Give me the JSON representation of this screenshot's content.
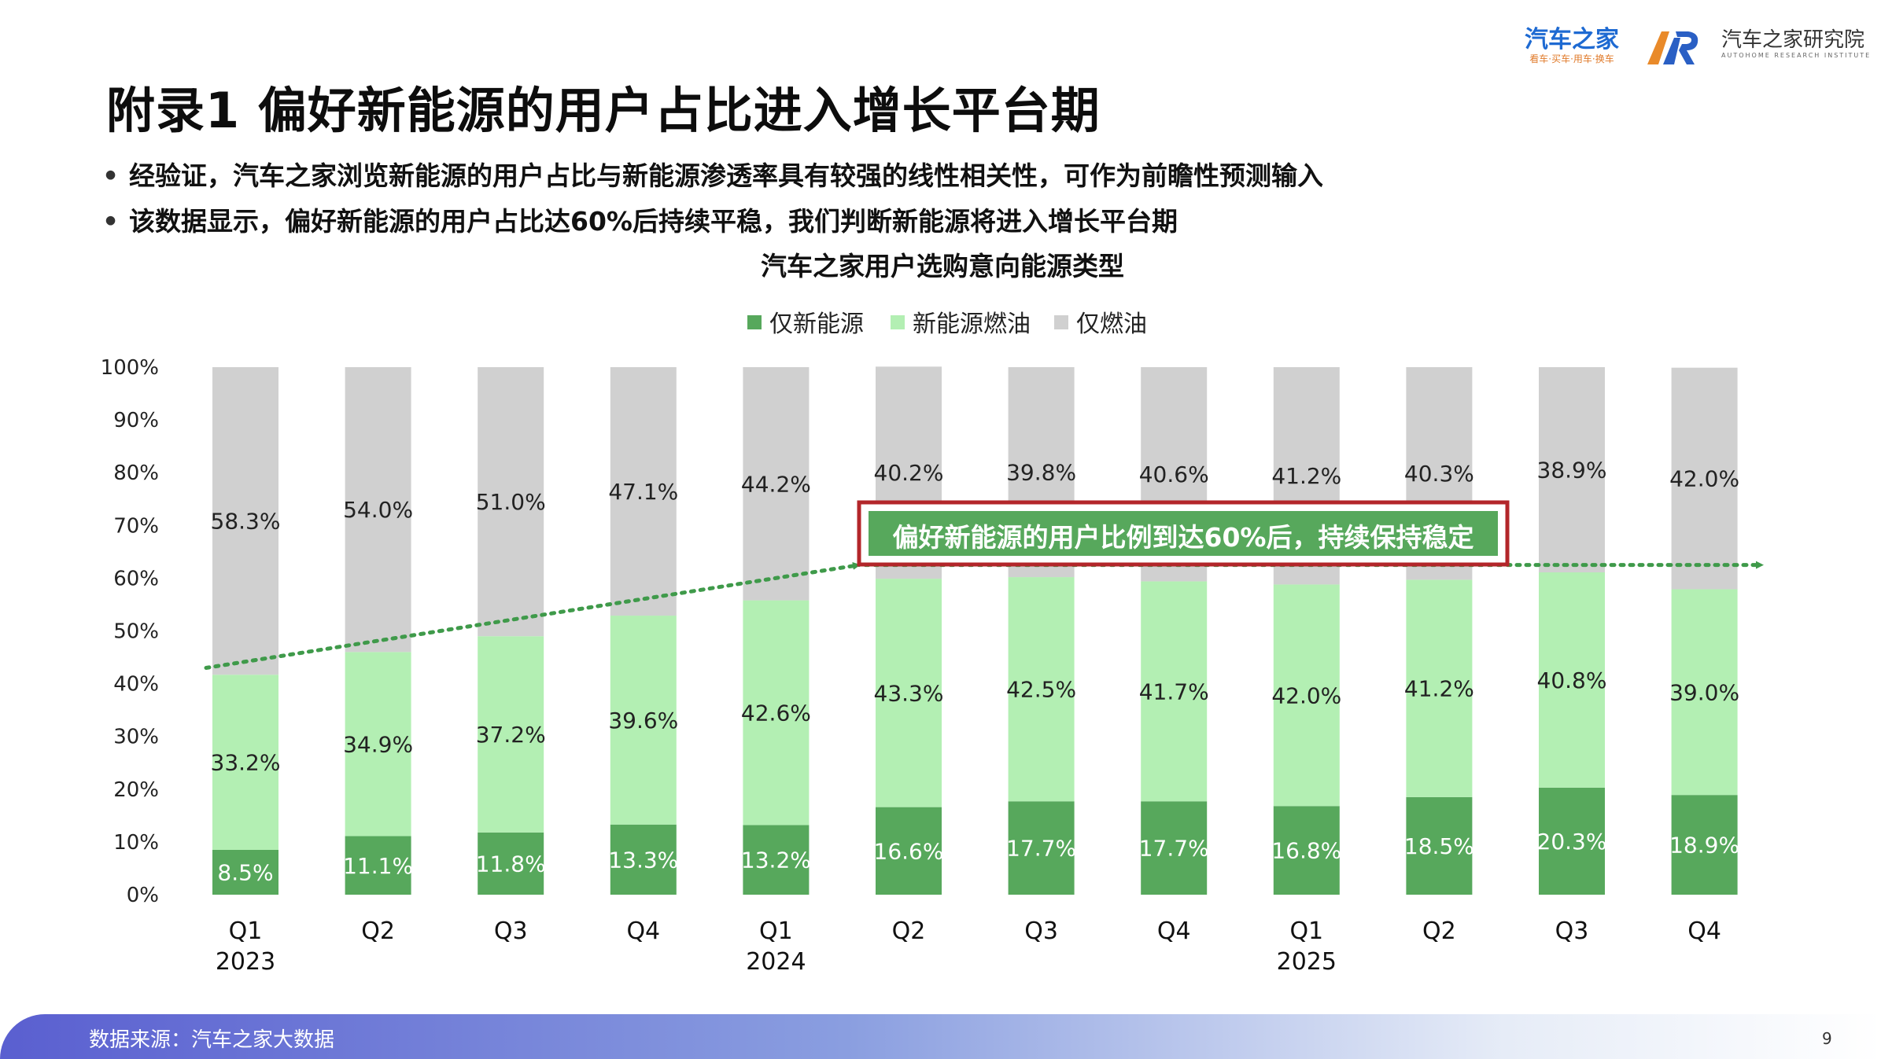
{
  "header": {
    "title": "附录1 偏好新能源的用户占比进入增长平台期",
    "brand_name": "汽车之家",
    "brand_tagline": "看车·买车·用车·换车",
    "institute_name": "汽车之家研究院",
    "institute_en": "AUTOHOME RESEARCH INSTITUTE"
  },
  "bullets": [
    "经验证，汽车之家浏览新能源的用户占比与新能源渗透率具有较强的线性相关性，可作为前瞻性预测输入",
    "该数据显示，偏好新能源的用户占比达60%后持续平稳，我们判断新能源将进入增长平台期"
  ],
  "footer": {
    "source": "数据来源：汽车之家大数据",
    "page": "9"
  },
  "chart_data": {
    "type": "bar",
    "stacked": true,
    "title": "汽车之家用户选购意向能源类型",
    "categories": [
      "Q1",
      "Q2",
      "Q3",
      "Q4",
      "Q1",
      "Q2",
      "Q3",
      "Q4",
      "Q1",
      "Q2",
      "Q3",
      "Q4"
    ],
    "year_labels": [
      "2023",
      "",
      "",
      "",
      "2024",
      "",
      "",
      "",
      "2025",
      "",
      "",
      ""
    ],
    "yticks": [
      "0%",
      "10%",
      "20%",
      "30%",
      "40%",
      "50%",
      "60%",
      "70%",
      "80%",
      "90%",
      "100%"
    ],
    "ylim": [
      0,
      100
    ],
    "legend_position": "top-center",
    "series": [
      {
        "name": "仅新能源",
        "color": "#57a85c",
        "values": [
          8.5,
          11.1,
          11.8,
          13.3,
          13.2,
          16.6,
          17.7,
          17.7,
          16.8,
          18.5,
          20.3,
          18.9
        ],
        "labels": [
          "8.5%",
          "11.1%",
          "11.8%",
          "13.3%",
          "13.2%",
          "16.6%",
          "17.7%",
          "17.7%",
          "16.8%",
          "18.5%",
          "20.3%",
          "18.9%"
        ]
      },
      {
        "name": "新能源燃油",
        "color": "#b3efb3",
        "values": [
          33.2,
          34.9,
          37.2,
          39.6,
          42.6,
          43.3,
          42.5,
          41.7,
          42.0,
          41.2,
          40.8,
          39.0
        ],
        "labels": [
          "33.2%",
          "34.9%",
          "37.2%",
          "39.6%",
          "42.6%",
          "43.3%",
          "42.5%",
          "41.7%",
          "42.0%",
          "41.2%",
          "40.8%",
          "39.0%"
        ]
      },
      {
        "name": "仅燃油",
        "color": "#d0d0d0",
        "values": [
          58.3,
          54.0,
          51.0,
          47.1,
          44.2,
          40.2,
          39.8,
          40.6,
          41.2,
          40.3,
          38.9,
          42.0
        ],
        "labels": [
          "58.3%",
          "54.0%",
          "51.0%",
          "47.1%",
          "44.2%",
          "40.2%",
          "39.8%",
          "40.6%",
          "41.2%",
          "40.3%",
          "38.9%",
          "42.0%"
        ]
      }
    ],
    "trend": {
      "start_value": 43,
      "knee_value": 62.5,
      "end_value": 62.5,
      "color": "#3f9a4a"
    },
    "annotation": "偏好新能源的用户比例到达60%后，持续保持稳定",
    "annotation_border_color": "#b3262a",
    "annotation_fill_color": "#57a85c"
  }
}
